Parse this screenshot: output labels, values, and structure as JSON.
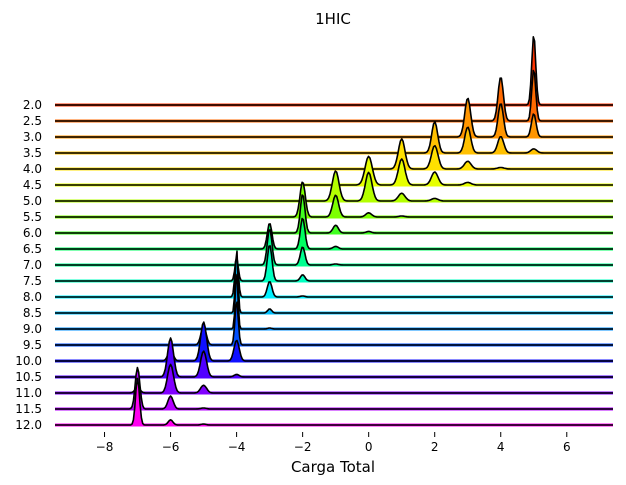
{
  "chart_data": {
    "type": "area",
    "subtype": "ridgeline",
    "title": "1HIC",
    "xlabel": "Carga Total",
    "ylabel": "",
    "xlim": [
      -9.5,
      7.4
    ],
    "xticks": [
      "−8",
      "−6",
      "−4",
      "−2",
      "0",
      "2",
      "4",
      "6"
    ],
    "xtick_values": [
      -8,
      -6,
      -4,
      -2,
      0,
      2,
      4,
      6
    ],
    "grid": false,
    "legend": "none",
    "ridges": [
      {
        "label": "2.0",
        "color": "#ff3300",
        "peaks": [
          [
            5,
            1.35,
            0.06
          ]
        ]
      },
      {
        "label": "2.5",
        "color": "#ff6a00",
        "peaks": [
          [
            4,
            0.85,
            0.08
          ],
          [
            5,
            1.0,
            0.06
          ]
        ]
      },
      {
        "label": "3.0",
        "color": "#ff9500",
        "peaks": [
          [
            3,
            0.75,
            0.09
          ],
          [
            4,
            0.65,
            0.08
          ],
          [
            5,
            0.45,
            0.07
          ]
        ]
      },
      {
        "label": "3.5",
        "color": "#ffc000",
        "peaks": [
          [
            2,
            0.6,
            0.09
          ],
          [
            3,
            0.5,
            0.09
          ],
          [
            4,
            0.32,
            0.09
          ],
          [
            5,
            0.08,
            0.09
          ]
        ]
      },
      {
        "label": "4.0",
        "color": "#ffe000",
        "peaks": [
          [
            1,
            0.58,
            0.1
          ],
          [
            2,
            0.45,
            0.1
          ],
          [
            3,
            0.15,
            0.1
          ],
          [
            4,
            0.03,
            0.1
          ]
        ]
      },
      {
        "label": "4.5",
        "color": "#e6ff00",
        "peaks": [
          [
            0,
            0.55,
            0.11
          ],
          [
            1,
            0.5,
            0.1
          ],
          [
            2,
            0.25,
            0.1
          ],
          [
            3,
            0.05,
            0.1
          ]
        ]
      },
      {
        "label": "5.0",
        "color": "#b4ff00",
        "peaks": [
          [
            -1,
            0.58,
            0.1
          ],
          [
            0,
            0.55,
            0.1
          ],
          [
            1,
            0.15,
            0.1
          ],
          [
            2,
            0.05,
            0.1
          ]
        ]
      },
      {
        "label": "5.5",
        "color": "#7dff00",
        "peaks": [
          [
            -2,
            0.68,
            0.08
          ],
          [
            -1,
            0.42,
            0.09
          ],
          [
            0,
            0.08,
            0.09
          ],
          [
            1,
            0.02,
            0.09
          ]
        ]
      },
      {
        "label": "6.0",
        "color": "#40ff20",
        "peaks": [
          [
            -2,
            0.75,
            0.07
          ],
          [
            -1,
            0.15,
            0.08
          ],
          [
            0,
            0.03,
            0.08
          ]
        ]
      },
      {
        "label": "6.5",
        "color": "#00ff60",
        "peaks": [
          [
            -3,
            0.5,
            0.07
          ],
          [
            -2,
            0.6,
            0.07
          ],
          [
            -1,
            0.05,
            0.08
          ]
        ]
      },
      {
        "label": "7.0",
        "color": "#00ff90",
        "peaks": [
          [
            -3,
            0.7,
            0.07
          ],
          [
            -2,
            0.35,
            0.07
          ],
          [
            -1,
            0.02,
            0.08
          ]
        ]
      },
      {
        "label": "7.5",
        "color": "#00ffc0",
        "peaks": [
          [
            -4,
            0.45,
            0.05
          ],
          [
            -3,
            0.7,
            0.07
          ],
          [
            -2,
            0.12,
            0.07
          ]
        ]
      },
      {
        "label": "8.0",
        "color": "#00f0ff",
        "peaks": [
          [
            -4,
            0.8,
            0.05
          ],
          [
            -3,
            0.3,
            0.07
          ],
          [
            -2,
            0.02,
            0.07
          ]
        ]
      },
      {
        "label": "8.5",
        "color": "#00c0ff",
        "peaks": [
          [
            -4,
            1.25,
            0.04
          ],
          [
            -3,
            0.08,
            0.06
          ]
        ]
      },
      {
        "label": "9.0",
        "color": "#0090ff",
        "peaks": [
          [
            -4,
            1.1,
            0.04
          ],
          [
            -3,
            0.02,
            0.06
          ]
        ]
      },
      {
        "label": "9.5",
        "color": "#0050ff",
        "peaks": [
          [
            -5,
            0.35,
            0.08
          ],
          [
            -4,
            0.85,
            0.05
          ]
        ]
      },
      {
        "label": "10.0",
        "color": "#1010ff",
        "peaks": [
          [
            -6,
            0.2,
            0.08
          ],
          [
            -5,
            0.75,
            0.09
          ],
          [
            -4,
            0.4,
            0.08
          ]
        ]
      },
      {
        "label": "10.5",
        "color": "#5000ff",
        "peaks": [
          [
            -6,
            0.75,
            0.09
          ],
          [
            -5,
            0.5,
            0.09
          ],
          [
            -4,
            0.05,
            0.08
          ]
        ]
      },
      {
        "label": "11.0",
        "color": "#8000ff",
        "peaks": [
          [
            -7,
            0.1,
            0.08
          ],
          [
            -6,
            0.55,
            0.09
          ],
          [
            -5,
            0.15,
            0.09
          ]
        ]
      },
      {
        "label": "11.5",
        "color": "#b400ff",
        "peaks": [
          [
            -7,
            0.8,
            0.07
          ],
          [
            -6,
            0.25,
            0.08
          ],
          [
            -5,
            0.02,
            0.08
          ]
        ]
      },
      {
        "label": "12.0",
        "color": "#ff00f0",
        "peaks": [
          [
            -7,
            0.9,
            0.06
          ],
          [
            -6,
            0.1,
            0.07
          ],
          [
            -5,
            0.02,
            0.07
          ]
        ]
      }
    ]
  }
}
